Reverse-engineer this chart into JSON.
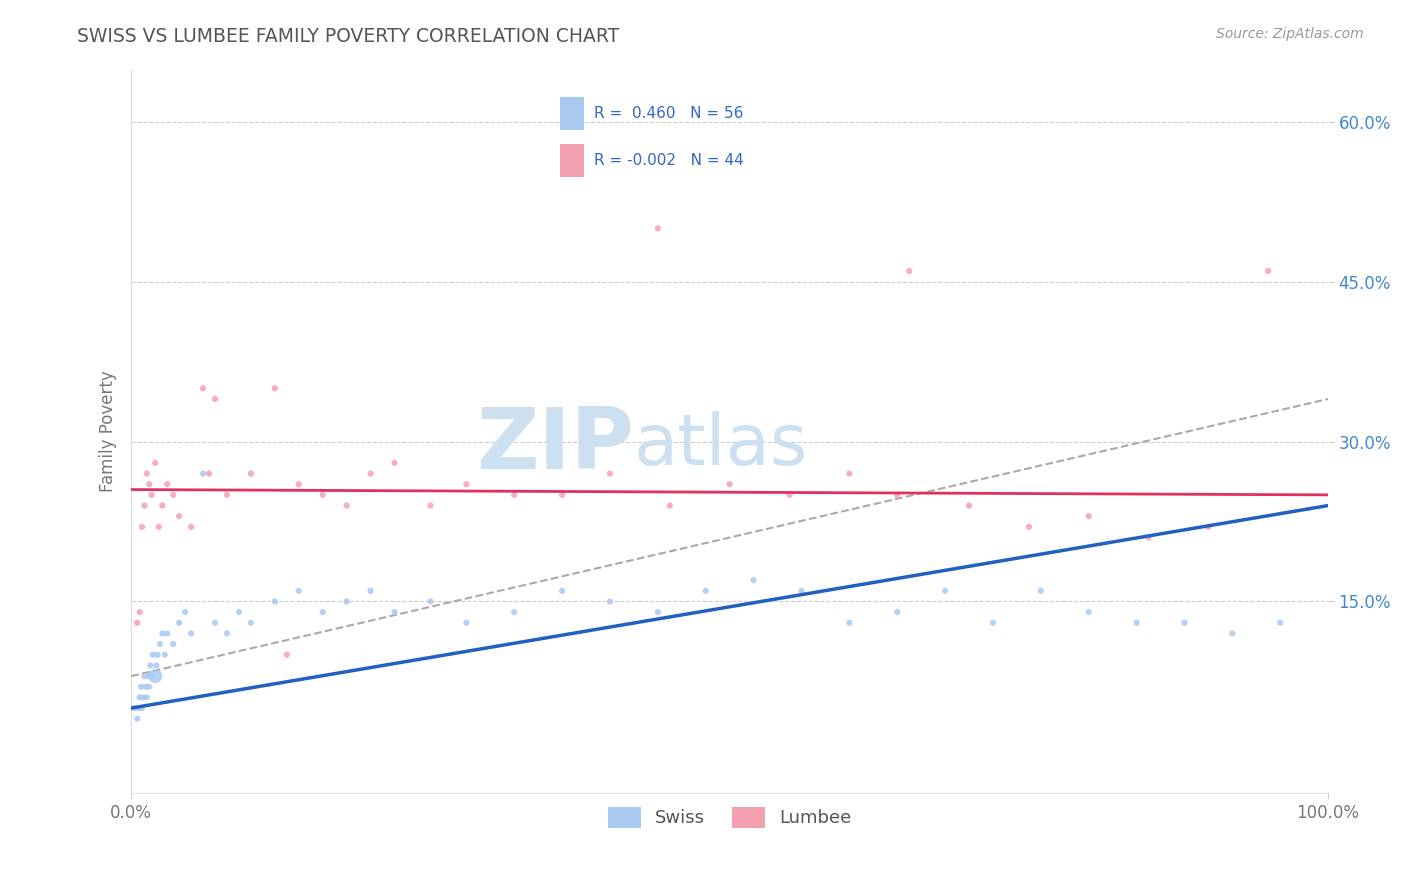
{
  "title": "SWISS VS LUMBEE FAMILY POVERTY CORRELATION CHART",
  "source": "Source: ZipAtlas.com",
  "ylabel": "Family Poverty",
  "xmin": 0.0,
  "xmax": 100.0,
  "ymin": -3.0,
  "ymax": 65.0,
  "xtick_labels": [
    "0.0%",
    "100.0%"
  ],
  "xtick_positions": [
    0.0,
    100.0
  ],
  "ytick_labels": [
    "15.0%",
    "30.0%",
    "45.0%",
    "60.0%"
  ],
  "ytick_positions": [
    15.0,
    30.0,
    45.0,
    60.0
  ],
  "legend_r_swiss": "0.460",
  "legend_n_swiss": "56",
  "legend_r_lumbee": "-0.002",
  "legend_n_lumbee": "44",
  "swiss_color": "#a8c8f0",
  "lumbee_color": "#f4a0b0",
  "swiss_trend_color": "#2060c0",
  "lumbee_trend_color": "#e03060",
  "overall_trend_color": "#aaaaaa",
  "background_color": "#ffffff",
  "plot_bg_color": "#ffffff",
  "grid_color": "#cccccc",
  "watermark_color": "#cce0f0",
  "swiss_x": [
    0.3,
    0.5,
    0.6,
    0.7,
    0.8,
    0.9,
    1.0,
    1.1,
    1.2,
    1.3,
    1.4,
    1.5,
    1.6,
    1.7,
    1.8,
    2.0,
    2.1,
    2.2,
    2.4,
    2.6,
    2.8,
    3.0,
    3.5,
    4.0,
    4.5,
    5.0,
    6.0,
    7.0,
    8.0,
    9.0,
    10.0,
    12.0,
    14.0,
    16.0,
    18.0,
    20.0,
    22.0,
    25.0,
    28.0,
    32.0,
    36.0,
    40.0,
    44.0,
    48.0,
    52.0,
    56.0,
    60.0,
    64.0,
    68.0,
    72.0,
    76.0,
    80.0,
    84.0,
    88.0,
    92.0,
    96.0
  ],
  "swiss_y": [
    5.0,
    4.0,
    5.0,
    6.0,
    7.0,
    5.0,
    6.0,
    8.0,
    7.0,
    6.0,
    8.0,
    7.0,
    9.0,
    8.0,
    10.0,
    8.0,
    9.0,
    10.0,
    11.0,
    12.0,
    10.0,
    12.0,
    11.0,
    13.0,
    14.0,
    12.0,
    27.0,
    13.0,
    12.0,
    14.0,
    13.0,
    15.0,
    16.0,
    14.0,
    15.0,
    16.0,
    14.0,
    15.0,
    13.0,
    14.0,
    16.0,
    15.0,
    14.0,
    16.0,
    17.0,
    16.0,
    13.0,
    14.0,
    16.0,
    13.0,
    16.0,
    14.0,
    13.0,
    13.0,
    12.0,
    13.0
  ],
  "swiss_sizes": [
    20,
    20,
    20,
    20,
    20,
    20,
    20,
    20,
    20,
    20,
    20,
    20,
    20,
    20,
    20,
    100,
    20,
    20,
    20,
    20,
    20,
    20,
    20,
    20,
    20,
    20,
    20,
    20,
    20,
    20,
    20,
    20,
    20,
    20,
    20,
    20,
    20,
    20,
    20,
    20,
    20,
    20,
    20,
    20,
    20,
    20,
    20,
    20,
    20,
    20,
    20,
    20,
    20,
    20,
    20,
    20
  ],
  "lumbee_x": [
    0.5,
    0.7,
    0.9,
    1.1,
    1.3,
    1.5,
    1.7,
    2.0,
    2.3,
    2.6,
    3.0,
    3.5,
    4.0,
    5.0,
    6.0,
    7.0,
    8.0,
    10.0,
    12.0,
    14.0,
    16.0,
    18.0,
    20.0,
    22.0,
    25.0,
    28.0,
    32.0,
    36.0,
    40.0,
    44.0,
    50.0,
    55.0,
    60.0,
    64.0,
    70.0,
    75.0,
    80.0,
    85.0,
    90.0,
    95.0,
    13.0,
    45.0,
    65.0,
    6.5
  ],
  "lumbee_y": [
    13.0,
    14.0,
    22.0,
    24.0,
    27.0,
    26.0,
    25.0,
    28.0,
    22.0,
    24.0,
    26.0,
    25.0,
    23.0,
    22.0,
    35.0,
    34.0,
    25.0,
    27.0,
    35.0,
    26.0,
    25.0,
    24.0,
    27.0,
    28.0,
    24.0,
    26.0,
    25.0,
    25.0,
    27.0,
    50.0,
    26.0,
    25.0,
    27.0,
    25.0,
    24.0,
    22.0,
    23.0,
    21.0,
    22.0,
    46.0,
    10.0,
    24.0,
    46.0,
    27.0
  ],
  "lumbee_sizes": [
    20,
    20,
    20,
    20,
    20,
    20,
    20,
    20,
    20,
    20,
    20,
    20,
    20,
    20,
    20,
    20,
    20,
    20,
    20,
    20,
    20,
    20,
    20,
    20,
    20,
    20,
    20,
    20,
    20,
    20,
    20,
    20,
    20,
    20,
    20,
    20,
    20,
    20,
    20,
    20,
    20,
    20,
    20,
    20
  ],
  "swiss_trend_x0": 0.0,
  "swiss_trend_y0": 5.0,
  "swiss_trend_x1": 100.0,
  "swiss_trend_y1": 24.0,
  "lumbee_trend_x0": 0.0,
  "lumbee_trend_y0": 25.5,
  "lumbee_trend_x1": 100.0,
  "lumbee_trend_y1": 25.0,
  "overall_trend_x0": 0.0,
  "overall_trend_y0": 8.0,
  "overall_trend_x1": 100.0,
  "overall_trend_y1": 34.0
}
